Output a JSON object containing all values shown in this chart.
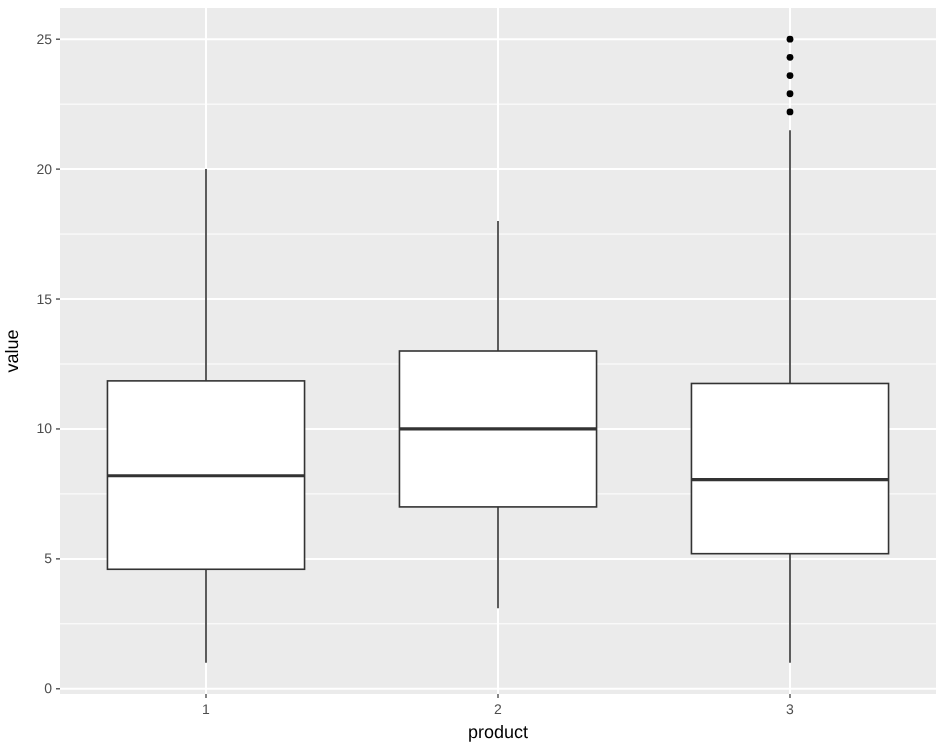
{
  "chart_data": {
    "type": "box",
    "xlabel": "product",
    "ylabel": "value",
    "categories": [
      "1",
      "2",
      "3"
    ],
    "boxes": [
      {
        "low": 1,
        "q1": 4.6,
        "median": 8.2,
        "q3": 11.85,
        "high": 20
      },
      {
        "low": 3.1,
        "q1": 7,
        "median": 10,
        "q3": 13,
        "high": 18
      },
      {
        "low": 1,
        "q1": 5.2,
        "median": 8.05,
        "q3": 11.75,
        "high": 21.5,
        "outliers": [
          25,
          24.3,
          23.6,
          22.9,
          22.2
        ]
      }
    ],
    "ylim": [
      -0.2,
      26.2
    ],
    "yticks": [
      0,
      5,
      10,
      15,
      20,
      25
    ],
    "grid": true
  }
}
